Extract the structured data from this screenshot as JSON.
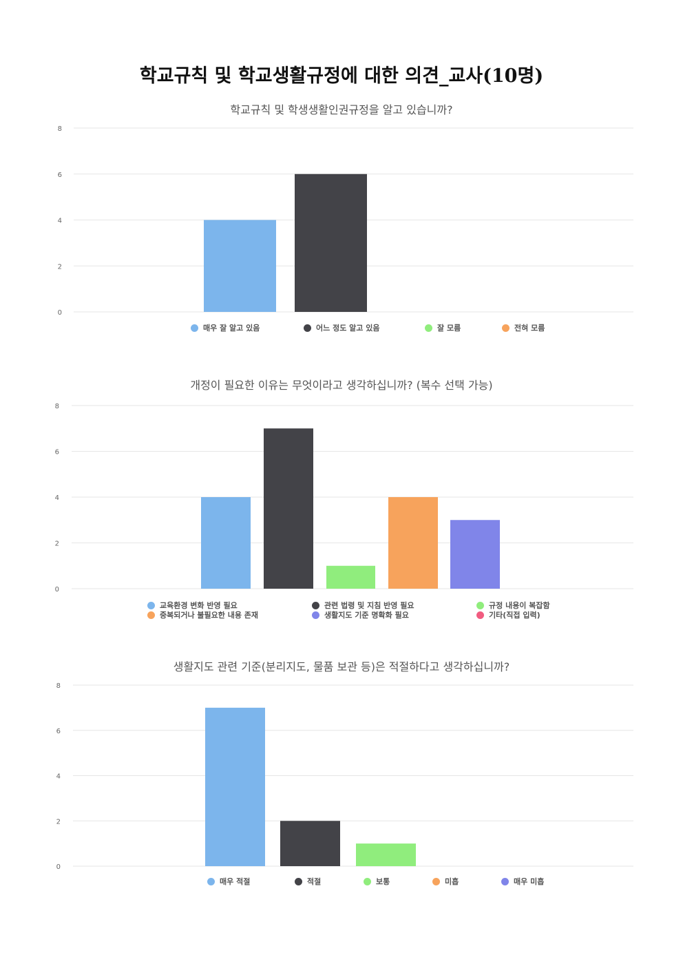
{
  "page_title": "학교규칙 및 학교생활규정에 대한 의견_교사(10명)",
  "chart_data": [
    {
      "type": "bar",
      "title": "학교규칙 및 학생생활인권규정을 알고 있습니까?",
      "categories": [
        "매우 잘 알고 있음",
        "어느 정도 알고 있음",
        "잘 모름",
        "전혀 모름"
      ],
      "values": [
        4,
        6,
        0,
        0
      ],
      "colors": [
        "#7cb5ec",
        "#434348",
        "#90ed7d",
        "#f7a35c"
      ],
      "ylim": [
        0,
        8
      ],
      "yticks": [
        "0",
        "2",
        "4",
        "6",
        "8"
      ],
      "grid": true,
      "legend": "bottom"
    },
    {
      "type": "bar",
      "title": "개정이 필요한 이유는 무엇이라고 생각하십니까? (복수 선택 가능)",
      "categories": [
        "교육환경 변화 반영 필요",
        "관련 법령 및 지침 반영 필요",
        "규정 내용이 복잡함",
        "중복되거나 불필요한 내용 존재",
        "생활지도 기준 명확화 필요",
        "기타(직접 입력)"
      ],
      "values": [
        4,
        7,
        1,
        4,
        3,
        0
      ],
      "colors": [
        "#7cb5ec",
        "#434348",
        "#90ed7d",
        "#f7a35c",
        "#8085e9",
        "#f15c80"
      ],
      "ylim": [
        0,
        8
      ],
      "yticks": [
        "0",
        "2",
        "4",
        "6",
        "8"
      ],
      "grid": true,
      "legend": "bottom"
    },
    {
      "type": "bar",
      "title": "생활지도 관련 기준(분리지도, 물품 보관 등)은 적절하다고 생각하십니까?",
      "categories": [
        "매우 적절",
        "적절",
        "보통",
        "미흡",
        "매우 미흡"
      ],
      "values": [
        7,
        2,
        1,
        0,
        0
      ],
      "colors": [
        "#7cb5ec",
        "#434348",
        "#90ed7d",
        "#f7a35c",
        "#8085e9"
      ],
      "ylim": [
        0,
        8
      ],
      "yticks": [
        "0",
        "2",
        "4",
        "6",
        "8"
      ],
      "grid": true,
      "legend": "bottom"
    }
  ]
}
